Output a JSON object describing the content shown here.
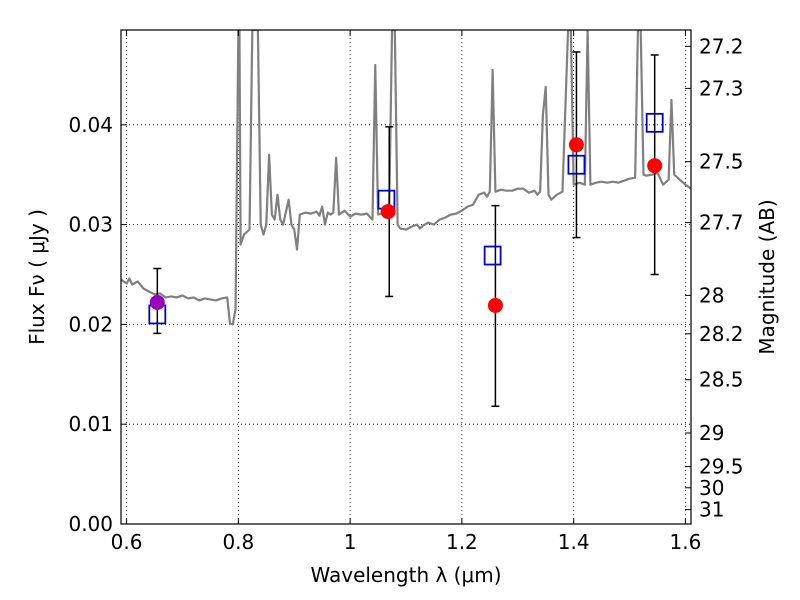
{
  "chart_data": {
    "type": "scatter",
    "xlabel": "Wavelength  λ (μm)",
    "ylabel": "Flux  Fν ( μJy )",
    "y2label": "Magnitude (AB)",
    "xlim": [
      0.59,
      1.61
    ],
    "ylim": [
      0.0,
      0.0495
    ],
    "grid": true,
    "x_ticks": [
      0.6,
      0.8,
      1.0,
      1.2,
      1.4,
      1.6
    ],
    "x_tick_labels": [
      "0.6",
      "0.8",
      "1",
      "1.2",
      "1.4",
      "1.6"
    ],
    "y_ticks": [
      0.0,
      0.01,
      0.02,
      0.03,
      0.04
    ],
    "y_tick_labels": [
      "0.00",
      "0.01",
      "0.02",
      "0.03",
      "0.04"
    ],
    "y2_ticks": [
      27.2,
      27.3,
      27.5,
      27.7,
      28,
      28.2,
      28.5,
      29,
      29.5,
      30,
      31
    ],
    "y2_tick_labels": [
      "27.2",
      "27.3",
      "27.5",
      "27.7",
      "28",
      "28.2",
      "28.5",
      "29",
      "29.5",
      "30",
      "31"
    ],
    "series": [
      {
        "kind": "line",
        "color": "#808080",
        "points": [
          [
            0.59,
            0.0245
          ],
          [
            0.6,
            0.0241
          ],
          [
            0.605,
            0.0246
          ],
          [
            0.61,
            0.024
          ],
          [
            0.62,
            0.0243
          ],
          [
            0.63,
            0.0236
          ],
          [
            0.64,
            0.0233
          ],
          [
            0.65,
            0.023
          ],
          [
            0.66,
            0.0231
          ],
          [
            0.67,
            0.0227
          ],
          [
            0.68,
            0.0228
          ],
          [
            0.69,
            0.0227
          ],
          [
            0.7,
            0.0229
          ],
          [
            0.71,
            0.0226
          ],
          [
            0.72,
            0.0227
          ],
          [
            0.73,
            0.0224
          ],
          [
            0.74,
            0.0226
          ],
          [
            0.75,
            0.0225
          ],
          [
            0.76,
            0.0224
          ],
          [
            0.77,
            0.0226
          ],
          [
            0.78,
            0.0227
          ],
          [
            0.785,
            0.0201
          ],
          [
            0.79,
            0.02
          ],
          [
            0.795,
            0.0215
          ],
          [
            0.8,
            0.0495
          ],
          [
            0.802,
            0.0495
          ],
          [
            0.804,
            0.028
          ],
          [
            0.81,
            0.029
          ],
          [
            0.82,
            0.0295
          ],
          [
            0.825,
            0.0495
          ],
          [
            0.835,
            0.0495
          ],
          [
            0.84,
            0.03
          ],
          [
            0.845,
            0.029
          ],
          [
            0.85,
            0.03
          ],
          [
            0.855,
            0.037
          ],
          [
            0.86,
            0.031
          ],
          [
            0.865,
            0.0305
          ],
          [
            0.87,
            0.033
          ],
          [
            0.875,
            0.0305
          ],
          [
            0.88,
            0.03
          ],
          [
            0.89,
            0.0325
          ],
          [
            0.895,
            0.03
          ],
          [
            0.9,
            0.0295
          ],
          [
            0.905,
            0.0275
          ],
          [
            0.91,
            0.031
          ],
          [
            0.92,
            0.0312
          ],
          [
            0.93,
            0.0311
          ],
          [
            0.94,
            0.0313
          ],
          [
            0.945,
            0.0309
          ],
          [
            0.95,
            0.0318
          ],
          [
            0.955,
            0.03
          ],
          [
            0.96,
            0.0312
          ],
          [
            0.965,
            0.031
          ],
          [
            0.97,
            0.0312
          ],
          [
            0.975,
            0.0367
          ],
          [
            0.98,
            0.031
          ],
          [
            0.99,
            0.0314
          ],
          [
            1.0,
            0.0308
          ],
          [
            1.01,
            0.0311
          ],
          [
            1.02,
            0.031
          ],
          [
            1.03,
            0.0311
          ],
          [
            1.04,
            0.0305
          ],
          [
            1.045,
            0.046
          ],
          [
            1.05,
            0.031
          ],
          [
            1.06,
            0.0312
          ],
          [
            1.065,
            0.031
          ],
          [
            1.07,
            0.0318
          ],
          [
            1.075,
            0.0495
          ],
          [
            1.08,
            0.0495
          ],
          [
            1.085,
            0.03
          ],
          [
            1.09,
            0.0296
          ],
          [
            1.1,
            0.0295
          ],
          [
            1.11,
            0.0298
          ],
          [
            1.12,
            0.03
          ],
          [
            1.125,
            0.0296
          ],
          [
            1.13,
            0.0299
          ],
          [
            1.14,
            0.0302
          ],
          [
            1.15,
            0.03
          ],
          [
            1.16,
            0.0305
          ],
          [
            1.17,
            0.0307
          ],
          [
            1.18,
            0.031
          ],
          [
            1.19,
            0.0311
          ],
          [
            1.2,
            0.0314
          ],
          [
            1.21,
            0.0318
          ],
          [
            1.22,
            0.032
          ],
          [
            1.23,
            0.033
          ],
          [
            1.24,
            0.0332
          ],
          [
            1.245,
            0.0328
          ],
          [
            1.25,
            0.0333
          ],
          [
            1.255,
            0.0455
          ],
          [
            1.26,
            0.0333
          ],
          [
            1.27,
            0.0335
          ],
          [
            1.28,
            0.0334
          ],
          [
            1.29,
            0.0334
          ],
          [
            1.3,
            0.0336
          ],
          [
            1.31,
            0.0336
          ],
          [
            1.32,
            0.0332
          ],
          [
            1.33,
            0.0334
          ],
          [
            1.335,
            0.033
          ],
          [
            1.34,
            0.0333
          ],
          [
            1.345,
            0.041
          ],
          [
            1.35,
            0.0438
          ],
          [
            1.355,
            0.033
          ],
          [
            1.36,
            0.0325
          ],
          [
            1.37,
            0.033
          ],
          [
            1.38,
            0.0333
          ],
          [
            1.39,
            0.0495
          ],
          [
            1.395,
            0.0495
          ],
          [
            1.4,
            0.034
          ],
          [
            1.41,
            0.0342
          ],
          [
            1.42,
            0.034
          ],
          [
            1.425,
            0.0495
          ],
          [
            1.43,
            0.034
          ],
          [
            1.44,
            0.0342
          ],
          [
            1.45,
            0.0343
          ],
          [
            1.46,
            0.0342
          ],
          [
            1.47,
            0.0343
          ],
          [
            1.48,
            0.0342
          ],
          [
            1.49,
            0.0344
          ],
          [
            1.5,
            0.0346
          ],
          [
            1.51,
            0.0347
          ],
          [
            1.515,
            0.0495
          ],
          [
            1.52,
            0.0495
          ],
          [
            1.525,
            0.035
          ],
          [
            1.53,
            0.0349
          ],
          [
            1.54,
            0.035
          ],
          [
            1.55,
            0.0352
          ],
          [
            1.56,
            0.034
          ],
          [
            1.57,
            0.0345
          ],
          [
            1.575,
            0.0425
          ],
          [
            1.58,
            0.035
          ],
          [
            1.59,
            0.0345
          ],
          [
            1.6,
            0.034
          ],
          [
            1.61,
            0.0336
          ]
        ]
      },
      {
        "kind": "errorbar",
        "color": "#000000",
        "points": [
          {
            "x": 0.655,
            "low": 0.0191,
            "high": 0.0256
          },
          {
            "x": 1.07,
            "low": 0.0228,
            "high": 0.0398
          },
          {
            "x": 1.26,
            "low": 0.0118,
            "high": 0.0319
          },
          {
            "x": 1.405,
            "low": 0.0287,
            "high": 0.0473
          },
          {
            "x": 1.545,
            "low": 0.025,
            "high": 0.047
          }
        ]
      },
      {
        "kind": "square",
        "color": "#0000cc",
        "points": [
          [
            0.655,
            0.021
          ],
          [
            1.065,
            0.0325
          ],
          [
            1.255,
            0.0269
          ],
          [
            1.405,
            0.036
          ],
          [
            1.545,
            0.0402
          ]
        ]
      },
      {
        "kind": "circle",
        "color": "#ff0000",
        "points": [
          [
            1.068,
            0.0313
          ],
          [
            1.26,
            0.0219
          ],
          [
            1.405,
            0.038
          ],
          [
            1.545,
            0.0359
          ]
        ]
      },
      {
        "kind": "circle",
        "color": "#9900bb",
        "points": [
          [
            0.655,
            0.0222
          ]
        ]
      }
    ]
  }
}
